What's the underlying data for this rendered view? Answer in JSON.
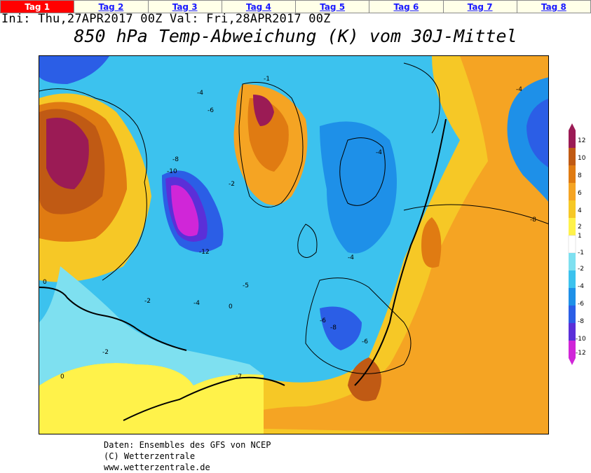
{
  "tabs": [
    {
      "label": "Tag 1",
      "active": true
    },
    {
      "label": "Tag 2",
      "active": false
    },
    {
      "label": "Tag 3",
      "active": false
    },
    {
      "label": "Tag 4",
      "active": false
    },
    {
      "label": "Tag 5",
      "active": false
    },
    {
      "label": "Tag 6",
      "active": false
    },
    {
      "label": "Tag 7",
      "active": false
    },
    {
      "label": "Tag 8",
      "active": false
    }
  ],
  "header": {
    "run_info": "Ini: Thu,27APR2017 00Z Val: Fri,28APR2017 00Z",
    "title": "850 hPa Temp-Abweichung (K) vom 30J-Mittel"
  },
  "legend": {
    "ticks": [
      "12",
      "10",
      "8",
      "6",
      "4",
      "2",
      "1",
      "-1",
      "-2",
      "-4",
      "-6",
      "-8",
      "-10",
      "-12"
    ],
    "colors": [
      "#9b1b55",
      "#c05a14",
      "#e07b12",
      "#f5a423",
      "#f6c826",
      "#fff24a",
      "#ffffff",
      "#7ee0f0",
      "#3cc2ee",
      "#1e90e8",
      "#2b5ee6",
      "#5b2fd8",
      "#d026d8"
    ]
  },
  "map_labels": [
    "-10",
    "-8",
    "-6",
    "-4",
    "-2",
    "-1",
    "0",
    "-12",
    "-7",
    "-5"
  ],
  "footer": {
    "line1": "Daten: Ensembles des GFS von NCEP",
    "line2": "(C) Wetterzentrale",
    "line3": "www.wetterzentrale.de"
  }
}
